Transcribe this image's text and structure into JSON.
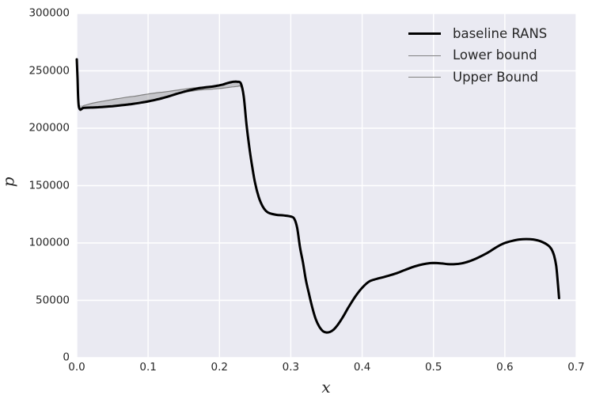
{
  "figure": {
    "background": "#ffffff",
    "axes_background": "#eaeaf2",
    "grid_color": "#ffffff",
    "text_color": "#262626",
    "band_fill": "#9a9a9a",
    "band_opacity": 0.45
  },
  "chart_data": {
    "type": "line",
    "title": "",
    "xlabel": "x",
    "ylabel": "p",
    "xlim": [
      0.0,
      0.7
    ],
    "ylim": [
      0,
      300000
    ],
    "grid": true,
    "xticks": [
      {
        "v": 0.0,
        "label": "0.0"
      },
      {
        "v": 0.1,
        "label": "0.1"
      },
      {
        "v": 0.2,
        "label": "0.2"
      },
      {
        "v": 0.3,
        "label": "0.3"
      },
      {
        "v": 0.4,
        "label": "0.4"
      },
      {
        "v": 0.5,
        "label": "0.5"
      },
      {
        "v": 0.6,
        "label": "0.6"
      },
      {
        "v": 0.7,
        "label": "0.7"
      }
    ],
    "yticks": [
      {
        "v": 0,
        "label": "0"
      },
      {
        "v": 50000,
        "label": "50000"
      },
      {
        "v": 100000,
        "label": "100000"
      },
      {
        "v": 150000,
        "label": "150000"
      },
      {
        "v": 200000,
        "label": "200000"
      },
      {
        "v": 250000,
        "label": "250000"
      },
      {
        "v": 300000,
        "label": "300000"
      }
    ],
    "legend": {
      "location": "upper right",
      "frame": false
    },
    "band": {
      "between": [
        "Lower bound",
        "Upper Bound"
      ]
    },
    "series": [
      {
        "name": "baseline RANS",
        "color": "#000000",
        "width": 3,
        "x": [
          0,
          0.001,
          0.003,
          0.01,
          0.02,
          0.03,
          0.04,
          0.05,
          0.06,
          0.07,
          0.08,
          0.09,
          0.1,
          0.11,
          0.12,
          0.13,
          0.14,
          0.15,
          0.16,
          0.17,
          0.18,
          0.19,
          0.2,
          0.205,
          0.21,
          0.215,
          0.22,
          0.225,
          0.23,
          0.234,
          0.238,
          0.242,
          0.246,
          0.25,
          0.255,
          0.26,
          0.265,
          0.27,
          0.28,
          0.29,
          0.3,
          0.305,
          0.309,
          0.313,
          0.317,
          0.321,
          0.325,
          0.33,
          0.335,
          0.34,
          0.345,
          0.35,
          0.355,
          0.36,
          0.365,
          0.37,
          0.375,
          0.38,
          0.39,
          0.4,
          0.41,
          0.42,
          0.43,
          0.44,
          0.45,
          0.46,
          0.47,
          0.48,
          0.49,
          0.5,
          0.51,
          0.52,
          0.53,
          0.54,
          0.55,
          0.56,
          0.57,
          0.58,
          0.59,
          0.6,
          0.61,
          0.62,
          0.63,
          0.64,
          0.65,
          0.66,
          0.665,
          0.669,
          0.672,
          0.674,
          0.676
        ],
        "y": [
          260000,
          245000,
          218500,
          217800,
          218000,
          218300,
          218700,
          219200,
          219800,
          220500,
          221300,
          222300,
          223400,
          224700,
          226200,
          228000,
          229900,
          231700,
          233300,
          234700,
          235600,
          236300,
          237400,
          238100,
          239100,
          239900,
          240500,
          240500,
          239000,
          228000,
          203000,
          183000,
          166000,
          152000,
          140000,
          132500,
          128000,
          126000,
          124500,
          124000,
          123000,
          121000,
          113000,
          96000,
          83000,
          68000,
          57000,
          44000,
          33500,
          27000,
          23200,
          22000,
          22500,
          24500,
          28000,
          32500,
          37500,
          43000,
          53000,
          61000,
          66500,
          68600,
          70200,
          72000,
          74000,
          76500,
          78800,
          80700,
          82000,
          82600,
          82300,
          81600,
          81500,
          82300,
          84000,
          86500,
          89500,
          93000,
          97000,
          100000,
          101800,
          103000,
          103400,
          103000,
          101500,
          98300,
          95000,
          89000,
          80000,
          67000,
          52000
        ]
      },
      {
        "name": "Lower bound",
        "color": "#808080",
        "width": 1.2,
        "x": [
          0,
          0.003,
          0.01,
          0.02,
          0.05,
          0.08,
          0.1,
          0.12,
          0.14,
          0.148,
          0.15,
          0.16,
          0.17,
          0.18,
          0.19,
          0.2,
          0.205,
          0.21,
          0.215,
          0.22,
          0.225,
          0.23,
          0.234,
          0.238,
          0.242
        ],
        "y": [
          260000,
          218500,
          217800,
          218000,
          219200,
          221300,
          223400,
          226200,
          229900,
          231000,
          231200,
          232200,
          233100,
          233700,
          234100,
          234600,
          234900,
          235300,
          235700,
          236100,
          236400,
          236200,
          226500,
          201500,
          183000
        ]
      },
      {
        "name": "Upper Bound",
        "color": "#808080",
        "width": 1.2,
        "x": [
          0,
          0.003,
          0.01,
          0.02,
          0.03,
          0.04,
          0.05,
          0.06,
          0.07,
          0.08,
          0.09,
          0.1,
          0.11,
          0.12,
          0.13,
          0.14,
          0.15,
          0.16,
          0.17,
          0.18,
          0.19,
          0.2,
          0.205,
          0.21,
          0.215,
          0.22,
          0.225,
          0.23,
          0.234,
          0.238
        ],
        "y": [
          260000,
          220000,
          219800,
          221500,
          222800,
          223900,
          225000,
          226000,
          227000,
          227800,
          228800,
          229800,
          230700,
          231400,
          232200,
          233100,
          234000,
          234800,
          235500,
          236000,
          236600,
          237600,
          238300,
          239300,
          240100,
          240700,
          240700,
          239200,
          228200,
          203200
        ]
      }
    ]
  }
}
